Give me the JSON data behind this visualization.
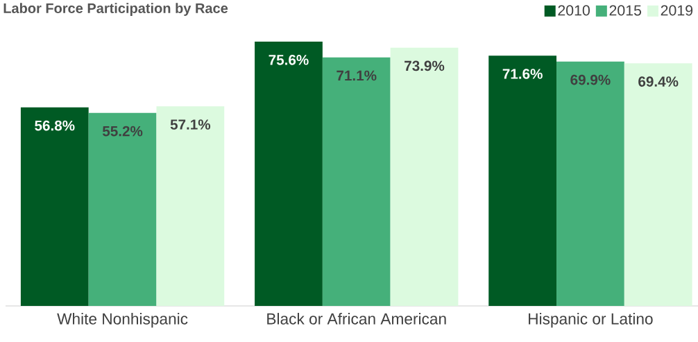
{
  "chart_data": {
    "type": "bar",
    "title": "Labor Force Participation by Race",
    "categories": [
      "White Nonhispanic",
      "Black or African American",
      "Hispanic or Latino"
    ],
    "series": [
      {
        "name": "2010",
        "color": "#005a24",
        "values": [
          56.8,
          75.6,
          71.6
        ],
        "value_labels": [
          "56.8%",
          "75.6%",
          "71.6%"
        ]
      },
      {
        "name": "2015",
        "color": "#45b07a",
        "values": [
          55.2,
          71.1,
          69.9
        ],
        "value_labels": [
          "55.2%",
          "71.1%",
          "69.9%"
        ]
      },
      {
        "name": "2019",
        "color": "#dcfadf",
        "values": [
          57.1,
          73.9,
          69.4
        ],
        "value_labels": [
          "57.1%",
          "73.9%",
          "69.4%"
        ]
      }
    ],
    "legend": "top right"
  }
}
